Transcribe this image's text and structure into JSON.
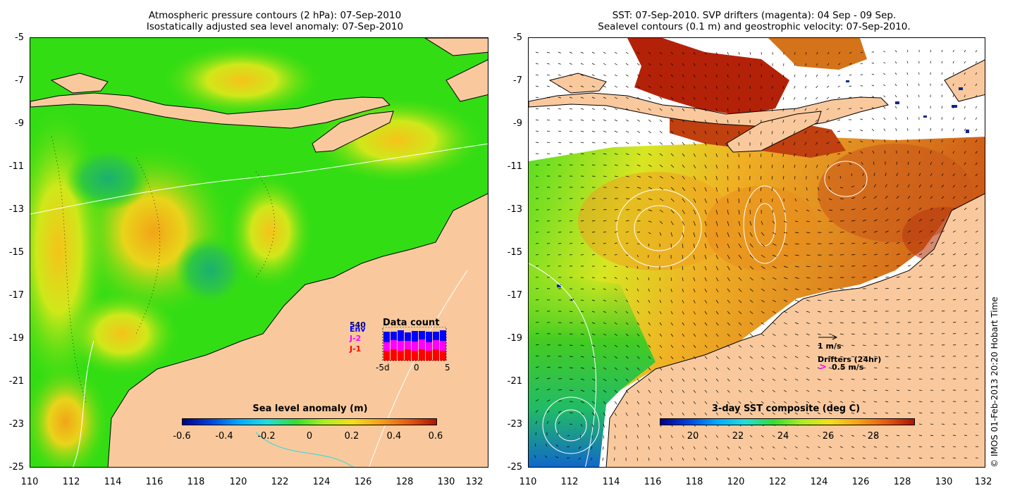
{
  "left_panel": {
    "title_line1": "Atmospheric pressure contours (2 hPa): 07-Sep-2010",
    "title_line2": "Isostatically adjusted sea level anomaly: 07-Sep-2010",
    "y_ticks": [
      "-5",
      "-7",
      "-9",
      "-11",
      "-13",
      "-15",
      "-17",
      "-19",
      "-21",
      "-23",
      "-25"
    ],
    "x_ticks": [
      "110",
      "112",
      "114",
      "116",
      "118",
      "120",
      "122",
      "124",
      "126",
      "128",
      "130",
      "132"
    ],
    "colorbar": {
      "title": "Sea level anomaly (m)",
      "ticks": [
        "-0.6",
        "-0.4",
        "-0.2",
        "0",
        "0.2",
        "0.4",
        "0.6"
      ],
      "range": [
        -0.6,
        0.6
      ]
    },
    "data_count": {
      "title": "Data count",
      "labels": [
        "Env",
        "J-2",
        "J-1"
      ],
      "overlap_label": "540",
      "axis_left": "-5d",
      "axis_mid": "0",
      "axis_right": "5",
      "colors": [
        "#0000ff",
        "#ff00ff",
        "#ff0000"
      ]
    }
  },
  "right_panel": {
    "title_line1": "SST: 07-Sep-2010. SVP drifters (magenta): 04 Sep - 09 Sep.",
    "title_line2": "Sealevel contours (0.1 m) and geostrophic velocity: 07-Sep-2010.",
    "y_ticks": [
      "-5",
      "-7",
      "-9",
      "-11",
      "-13",
      "-15",
      "-17",
      "-19",
      "-21",
      "-23",
      "-25"
    ],
    "x_ticks": [
      "110",
      "112",
      "114",
      "116",
      "118",
      "120",
      "122",
      "124",
      "126",
      "128",
      "130",
      "132"
    ],
    "colorbar": {
      "title": "3-day SST composite (deg C)",
      "ticks": [
        "20",
        "22",
        "24",
        "26",
        "28"
      ],
      "range": [
        18.5,
        29.5
      ]
    },
    "velocity_scale_label": "1 m/s",
    "drifters_label": "Drifters (24hr)",
    "drifter_speed_label": "0.5 m/s"
  },
  "credit": "© IMOS 01-Feb-2013 20:20 Hobart Time",
  "colors": {
    "land": "#f9c99d",
    "ocean_green": "#22dd11",
    "sst_orange": "#e8901c",
    "sst_red": "#b32208",
    "drifter_magenta": "#ff00ff"
  }
}
